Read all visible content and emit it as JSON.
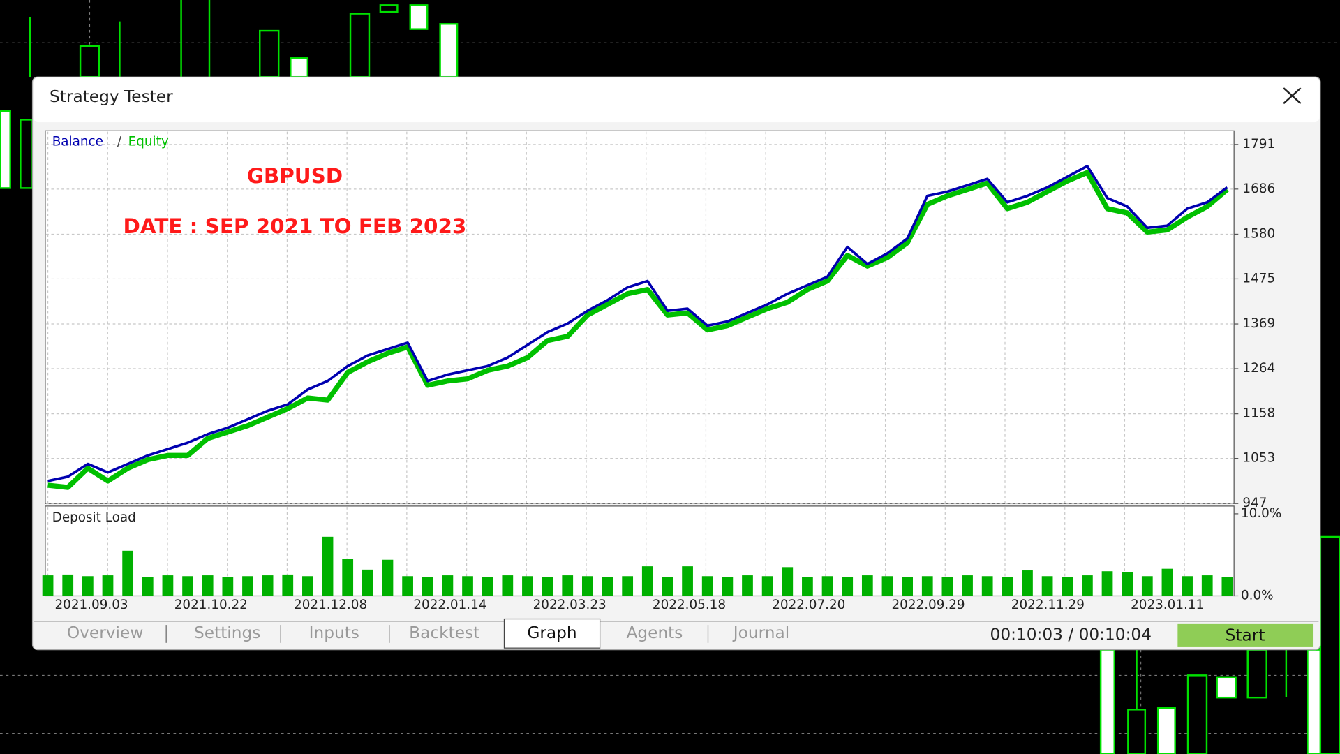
{
  "window": {
    "title": "Strategy Tester",
    "tabs": [
      "Overview",
      "Settings",
      "Inputs",
      "Backtest",
      "Graph",
      "Agents",
      "Journal"
    ],
    "active_tab": 4,
    "timer": "00:10:03 / 00:10:04",
    "start_button": "Start"
  },
  "chart_data": [
    {
      "type": "line",
      "title": "GBPUSD",
      "subtitle": "DATE : SEP 2021 TO FEB 2023",
      "legend_separator": "/",
      "ylim": [
        947,
        1823
      ],
      "yticks": [
        947,
        1053,
        1158,
        1264,
        1369,
        1475,
        1580,
        1686,
        1791
      ],
      "x_labels": [
        "2021.09.03",
        "2021.10.22",
        "2021.12.08",
        "2022.01.14",
        "2022.03.23",
        "2022.05.18",
        "2022.07.20",
        "2022.09.29",
        "2022.11.29",
        "2023.01.11"
      ],
      "grid": true,
      "series": [
        {
          "name": "Equity",
          "color": "#00c000",
          "values": [
            990,
            985,
            1030,
            1000,
            1030,
            1050,
            1060,
            1060,
            1100,
            1115,
            1130,
            1150,
            1170,
            1195,
            1190,
            1255,
            1280,
            1300,
            1315,
            1225,
            1235,
            1240,
            1260,
            1270,
            1290,
            1330,
            1340,
            1390,
            1415,
            1440,
            1450,
            1390,
            1395,
            1355,
            1365,
            1385,
            1405,
            1420,
            1450,
            1470,
            1530,
            1505,
            1525,
            1560,
            1650,
            1670,
            1685,
            1700,
            1640,
            1655,
            1680,
            1705,
            1725,
            1640,
            1630,
            1585,
            1590,
            1620,
            1645,
            1685
          ]
        },
        {
          "name": "Balance",
          "color": "#0000b0",
          "values": [
            1000,
            1010,
            1040,
            1020,
            1040,
            1060,
            1075,
            1090,
            1110,
            1125,
            1145,
            1165,
            1180,
            1215,
            1235,
            1270,
            1295,
            1310,
            1325,
            1235,
            1250,
            1260,
            1270,
            1290,
            1320,
            1350,
            1370,
            1400,
            1425,
            1455,
            1470,
            1400,
            1405,
            1365,
            1375,
            1395,
            1415,
            1440,
            1460,
            1480,
            1550,
            1510,
            1535,
            1570,
            1670,
            1680,
            1695,
            1710,
            1655,
            1670,
            1690,
            1715,
            1740,
            1665,
            1645,
            1595,
            1600,
            1640,
            1655,
            1690
          ]
        }
      ]
    },
    {
      "type": "bar",
      "title": "Deposit Load",
      "color": "#00b000",
      "ylim": [
        0,
        10
      ],
      "yticks": [
        {
          "value": 0,
          "label": "0.0%"
        },
        {
          "value": 10,
          "label": "10.0%"
        }
      ],
      "values": [
        2.5,
        2.6,
        2.4,
        2.5,
        5.5,
        2.3,
        2.5,
        2.4,
        2.5,
        2.3,
        2.4,
        2.5,
        2.6,
        2.4,
        7.2,
        4.5,
        3.2,
        4.4,
        2.4,
        2.3,
        2.5,
        2.4,
        2.3,
        2.5,
        2.4,
        2.3,
        2.5,
        2.4,
        2.3,
        2.4,
        3.6,
        2.3,
        3.6,
        2.4,
        2.3,
        2.5,
        2.4,
        3.5,
        2.3,
        2.4,
        2.3,
        2.5,
        2.4,
        2.3,
        2.4,
        2.3,
        2.5,
        2.4,
        2.3,
        3.1,
        2.4,
        2.3,
        2.5,
        3.0,
        2.9,
        2.4,
        3.3,
        2.4,
        2.5,
        2.3
      ]
    }
  ]
}
